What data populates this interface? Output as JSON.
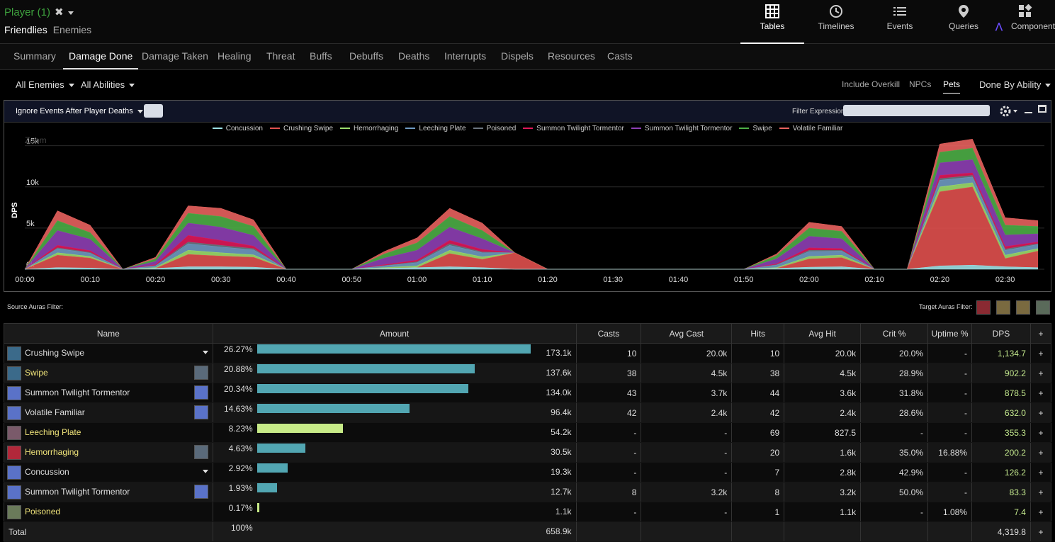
{
  "header": {
    "player": "Player (1)",
    "friendlies": "Friendlies",
    "enemies": "Enemies",
    "nav": [
      {
        "label": "Tables",
        "icon": "table-icon"
      },
      {
        "label": "Timelines",
        "icon": "clock-icon"
      },
      {
        "label": "Events",
        "icon": "list-icon"
      },
      {
        "label": "Queries",
        "icon": "map-pin-icon"
      },
      {
        "label": "Component",
        "icon": "component-icon"
      }
    ]
  },
  "tabs": [
    "Summary",
    "Damage Done",
    "Damage Taken",
    "Healing",
    "Threat",
    "Buffs",
    "Debuffs",
    "Deaths",
    "Interrupts",
    "Dispels",
    "Resources",
    "Casts"
  ],
  "filters": {
    "all_enemies": "All Enemies",
    "all_abilities": "All Abilities",
    "include_overkill": "Include Overkill",
    "npcs": "NPCs",
    "pets": "Pets",
    "done_by": "Done By Ability"
  },
  "chart_toolbar": {
    "ignore_events": "Ignore Events After Player Deaths",
    "filter_expression": "Filter Expression:"
  },
  "chart_data": {
    "type": "area",
    "title": "",
    "zoom_label": "Zoom",
    "ylabel": "DPS",
    "ylim": [
      0,
      16000
    ],
    "y_ticks": [
      "0k",
      "5k",
      "10k",
      "15k"
    ],
    "x_ticks": [
      "00:00",
      "00:10",
      "00:20",
      "00:30",
      "00:40",
      "00:50",
      "01:00",
      "01:10",
      "01:20",
      "01:30",
      "01:40",
      "01:50",
      "02:00",
      "02:10",
      "02:20",
      "02:30"
    ],
    "x": [
      0,
      5,
      10,
      15,
      20,
      25,
      30,
      35,
      40,
      45,
      50,
      55,
      60,
      65,
      70,
      75,
      80,
      85,
      90,
      95,
      100,
      105,
      110,
      115,
      120,
      125,
      130,
      135,
      140,
      145,
      150,
      155
    ],
    "series": [
      {
        "name": "Concussion",
        "color": "#9ce1e5",
        "values": [
          0,
          200,
          150,
          0,
          100,
          300,
          300,
          250,
          0,
          0,
          0,
          100,
          200,
          300,
          200,
          0,
          0,
          0,
          0,
          0,
          0,
          0,
          0,
          100,
          250,
          300,
          0,
          0,
          400,
          500,
          300,
          200
        ]
      },
      {
        "name": "Crushing Swipe",
        "color": "#e0504e",
        "values": [
          0,
          1500,
          1200,
          0,
          0,
          1500,
          1300,
          1200,
          0,
          0,
          0,
          0,
          0,
          1600,
          1000,
          2000,
          0,
          0,
          0,
          0,
          0,
          0,
          0,
          0,
          1000,
          1100,
          0,
          0,
          9000,
          9500,
          1000,
          2000
        ]
      },
      {
        "name": "Hemorrhaging",
        "color": "#9cdd6c",
        "values": [
          0,
          300,
          200,
          0,
          100,
          500,
          400,
          300,
          0,
          0,
          0,
          100,
          200,
          400,
          300,
          0,
          0,
          0,
          0,
          0,
          0,
          0,
          0,
          100,
          300,
          300,
          0,
          0,
          600,
          500,
          400,
          300
        ]
      },
      {
        "name": "Leeching Plate",
        "color": "#6f9ac2",
        "values": [
          0,
          500,
          400,
          0,
          200,
          800,
          700,
          600,
          0,
          0,
          0,
          200,
          400,
          600,
          500,
          0,
          0,
          0,
          0,
          0,
          0,
          0,
          0,
          300,
          600,
          500,
          0,
          0,
          800,
          700,
          600,
          500
        ]
      },
      {
        "name": "Poisoned",
        "color": "#6c7580",
        "values": [
          0,
          100,
          100,
          0,
          50,
          200,
          200,
          150,
          0,
          0,
          0,
          50,
          100,
          200,
          100,
          0,
          0,
          0,
          0,
          0,
          0,
          0,
          0,
          50,
          150,
          100,
          0,
          0,
          200,
          200,
          150,
          100
        ]
      },
      {
        "name": "Summon Twilight Tormentor",
        "color": "#e0185a",
        "values": [
          0,
          300,
          200,
          0,
          100,
          800,
          600,
          300,
          0,
          0,
          0,
          100,
          200,
          400,
          300,
          0,
          0,
          0,
          0,
          0,
          0,
          0,
          0,
          100,
          300,
          200,
          0,
          0,
          400,
          300,
          300,
          200
        ]
      },
      {
        "name": "Summon Twilight Tormentor",
        "color": "#8e3fb4",
        "values": [
          0,
          1800,
          1400,
          0,
          400,
          1500,
          1600,
          1300,
          0,
          0,
          0,
          800,
          1200,
          1600,
          1300,
          0,
          0,
          0,
          0,
          0,
          0,
          0,
          0,
          600,
          1400,
          1200,
          0,
          0,
          1500,
          1600,
          1400,
          1000
        ]
      },
      {
        "name": "Swipe",
        "color": "#4dae46",
        "values": [
          0,
          1200,
          800,
          0,
          300,
          1200,
          1300,
          1100,
          0,
          0,
          0,
          500,
          900,
          1300,
          1000,
          0,
          0,
          0,
          0,
          0,
          0,
          0,
          0,
          400,
          1000,
          900,
          0,
          0,
          1300,
          1400,
          1200,
          900
        ]
      },
      {
        "name": "Volatile Familiar",
        "color": "#e8625e",
        "values": [
          0,
          1200,
          900,
          0,
          200,
          900,
          1000,
          800,
          0,
          0,
          0,
          300,
          600,
          1000,
          900,
          0,
          0,
          0,
          0,
          0,
          0,
          0,
          0,
          200,
          700,
          600,
          0,
          0,
          1000,
          1100,
          900,
          700
        ]
      }
    ]
  },
  "auras": {
    "source": "Source Auras Filter:",
    "target": "Target Auras Filter:"
  },
  "table": {
    "headers": [
      "Name",
      "Amount",
      "Casts",
      "Avg Cast",
      "Hits",
      "Avg Hit",
      "Crit %",
      "Uptime %",
      "DPS",
      "+"
    ],
    "rows": [
      {
        "name": "Crushing Swipe",
        "cls": "gr",
        "pct": "26.27%",
        "frac": 1.0,
        "barColor": "#52a6b2",
        "amount": "173.1k",
        "casts": "10",
        "avgcast": "20.0k",
        "hits": "10",
        "avghit": "20.0k",
        "crit": "20.0%",
        "uptime": "-",
        "dps": "1,134.7",
        "icon": "#3b6a8a",
        "icon2": "",
        "caret": true
      },
      {
        "name": "Swipe",
        "cls": "ye",
        "pct": "20.88%",
        "frac": 0.795,
        "barColor": "#52a6b2",
        "amount": "137.6k",
        "casts": "38",
        "avgcast": "4.5k",
        "hits": "38",
        "avghit": "4.5k",
        "crit": "28.9%",
        "uptime": "-",
        "dps": "902.2",
        "icon": "#3b6a8a",
        "icon2": "#5a6a7a",
        "caret": false
      },
      {
        "name": "Summon Twilight Tormentor",
        "cls": "gr",
        "pct": "20.34%",
        "frac": 0.774,
        "barColor": "#52a6b2",
        "amount": "134.0k",
        "casts": "43",
        "avgcast": "3.7k",
        "hits": "44",
        "avghit": "3.6k",
        "crit": "31.8%",
        "uptime": "-",
        "dps": "878.5",
        "icon": "#5a72c8",
        "icon2": "#5a72c8",
        "caret": false
      },
      {
        "name": "Volatile Familiar",
        "cls": "gr",
        "pct": "14.63%",
        "frac": 0.557,
        "barColor": "#52a6b2",
        "amount": "96.4k",
        "casts": "42",
        "avgcast": "2.4k",
        "hits": "42",
        "avghit": "2.4k",
        "crit": "28.6%",
        "uptime": "-",
        "dps": "632.0",
        "icon": "#5a72c8",
        "icon2": "#5a72c8",
        "caret": false
      },
      {
        "name": "Leeching Plate",
        "cls": "ye",
        "pct": "8.23%",
        "frac": 0.313,
        "barColor": "#c7ea87",
        "amount": "54.2k",
        "casts": "-",
        "avgcast": "-",
        "hits": "69",
        "avghit": "827.5",
        "crit": "-",
        "uptime": "-",
        "dps": "355.3",
        "icon": "#7a5a6a",
        "icon2": "",
        "caret": false
      },
      {
        "name": "Hemorrhaging",
        "cls": "ye",
        "pct": "4.63%",
        "frac": 0.176,
        "barColor": "#52a6b2",
        "amount": "30.5k",
        "casts": "-",
        "avgcast": "-",
        "hits": "20",
        "avghit": "1.6k",
        "crit": "35.0%",
        "uptime": "16.88%",
        "dps": "200.2",
        "icon": "#b2283a",
        "icon2": "#5a6a7a",
        "caret": false
      },
      {
        "name": "Concussion",
        "cls": "gr",
        "pct": "2.92%",
        "frac": 0.111,
        "barColor": "#52a6b2",
        "amount": "19.3k",
        "casts": "-",
        "avgcast": "-",
        "hits": "7",
        "avghit": "2.8k",
        "crit": "42.9%",
        "uptime": "-",
        "dps": "126.2",
        "icon": "#5a72c8",
        "icon2": "",
        "caret": true
      },
      {
        "name": "Summon Twilight Tormentor",
        "cls": "gr",
        "pct": "1.93%",
        "frac": 0.073,
        "barColor": "#52a6b2",
        "amount": "12.7k",
        "casts": "8",
        "avgcast": "3.2k",
        "hits": "8",
        "avghit": "3.2k",
        "crit": "50.0%",
        "uptime": "-",
        "dps": "83.3",
        "icon": "#5a72c8",
        "icon2": "#5a72c8",
        "caret": false
      },
      {
        "name": "Poisoned",
        "cls": "ye",
        "pct": "0.17%",
        "frac": 0.007,
        "barColor": "#c7ea87",
        "amount": "1.1k",
        "casts": "-",
        "avgcast": "-",
        "hits": "1",
        "avghit": "1.1k",
        "crit": "-",
        "uptime": "1.08%",
        "dps": "7.4",
        "icon": "#6a7a5a",
        "icon2": "",
        "caret": false
      }
    ],
    "total": {
      "label": "Total",
      "pct": "100%",
      "amount": "658.9k",
      "dps": "4,319.8",
      "plus": "+"
    }
  }
}
